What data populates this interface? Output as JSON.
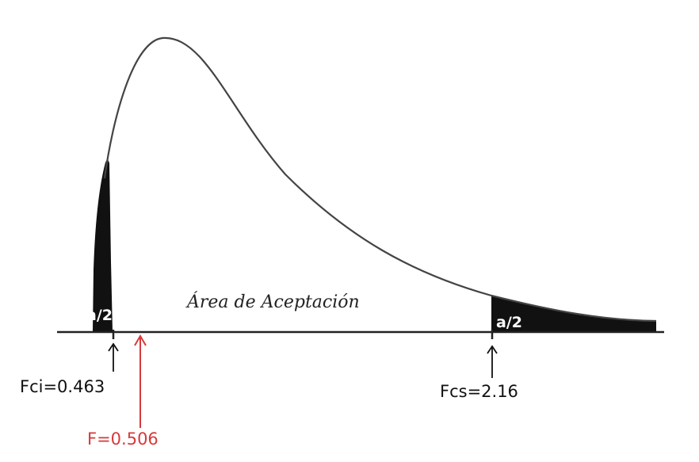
{
  "diagram": {
    "acceptance_area_label": "Área de Aceptación",
    "left_tail_label": "a/2",
    "right_tail_label": "a/2",
    "lower_critical_label": "Fci=0.463",
    "upper_critical_label": "Fcs=2.16",
    "statistic_label": "F=0.506"
  },
  "colors": {
    "curve": "#444444",
    "tail_fill": "#111111",
    "axis": "#222222",
    "statistic": "#d63a3a",
    "text": "#111111"
  }
}
